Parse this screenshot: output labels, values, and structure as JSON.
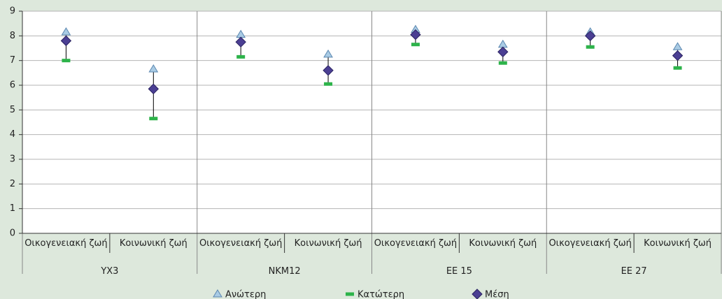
{
  "chart_data": {
    "type": "high-low-mean",
    "groups": [
      "ΥΧ3",
      "ΝΚΜ12",
      "ΕΕ 15",
      "ΕΕ 27"
    ],
    "categories": [
      "Οικογενειακή ζωή",
      "Κοινωνική ζωή",
      "Οικογενειακή ζωή",
      "Κοινωνική ζωή",
      "Οικογενειακή ζωή",
      "Κοινωνική ζωή",
      "Οικογενειακή ζωή",
      "Κοινωνική ζωή"
    ],
    "series": [
      {
        "name": "Ανώτερη",
        "color": "#a9cbe4",
        "values": [
          8.15,
          6.65,
          8.05,
          7.25,
          8.25,
          7.65,
          8.15,
          7.55
        ]
      },
      {
        "name": "Κατώτερη",
        "color": "#2db34a",
        "values": [
          7.0,
          4.65,
          7.15,
          6.05,
          7.65,
          6.9,
          7.55,
          6.7
        ]
      },
      {
        "name": "Μέση",
        "color": "#4b3f93",
        "values": [
          7.8,
          5.85,
          7.75,
          6.6,
          8.05,
          7.35,
          8.0,
          7.2
        ]
      }
    ],
    "ylim": [
      0,
      9
    ],
    "yticks": [
      0,
      1,
      2,
      3,
      4,
      5,
      6,
      7,
      8,
      9
    ],
    "grid": true
  }
}
